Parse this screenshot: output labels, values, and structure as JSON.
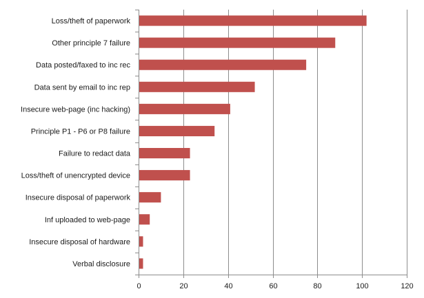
{
  "chart_data": {
    "type": "bar",
    "orientation": "horizontal",
    "title": "",
    "xlabel": "",
    "ylabel": "",
    "categories": [
      "Loss/theft of paperwork",
      "Other principle 7 failure",
      "Data posted/faxed to inc rec",
      "Data sent by email to inc rep",
      "Insecure web-page (inc hacking)",
      "Principle P1 - P6 or P8 failure",
      "Failure to redact data",
      "Loss/theft of unencrypted device",
      "Insecure disposal of paperwork",
      "Inf uploaded to web-page",
      "Insecure disposal of hardware",
      "Verbal disclosure"
    ],
    "values": [
      102,
      88,
      75,
      52,
      41,
      34,
      23,
      23,
      10,
      5,
      2,
      2
    ],
    "xlim": [
      0,
      120
    ],
    "xticks": [
      "0",
      "20",
      "40",
      "60",
      "80",
      "100",
      "120"
    ],
    "grid": true,
    "legend": "none",
    "bar_color": "#c0504d"
  }
}
